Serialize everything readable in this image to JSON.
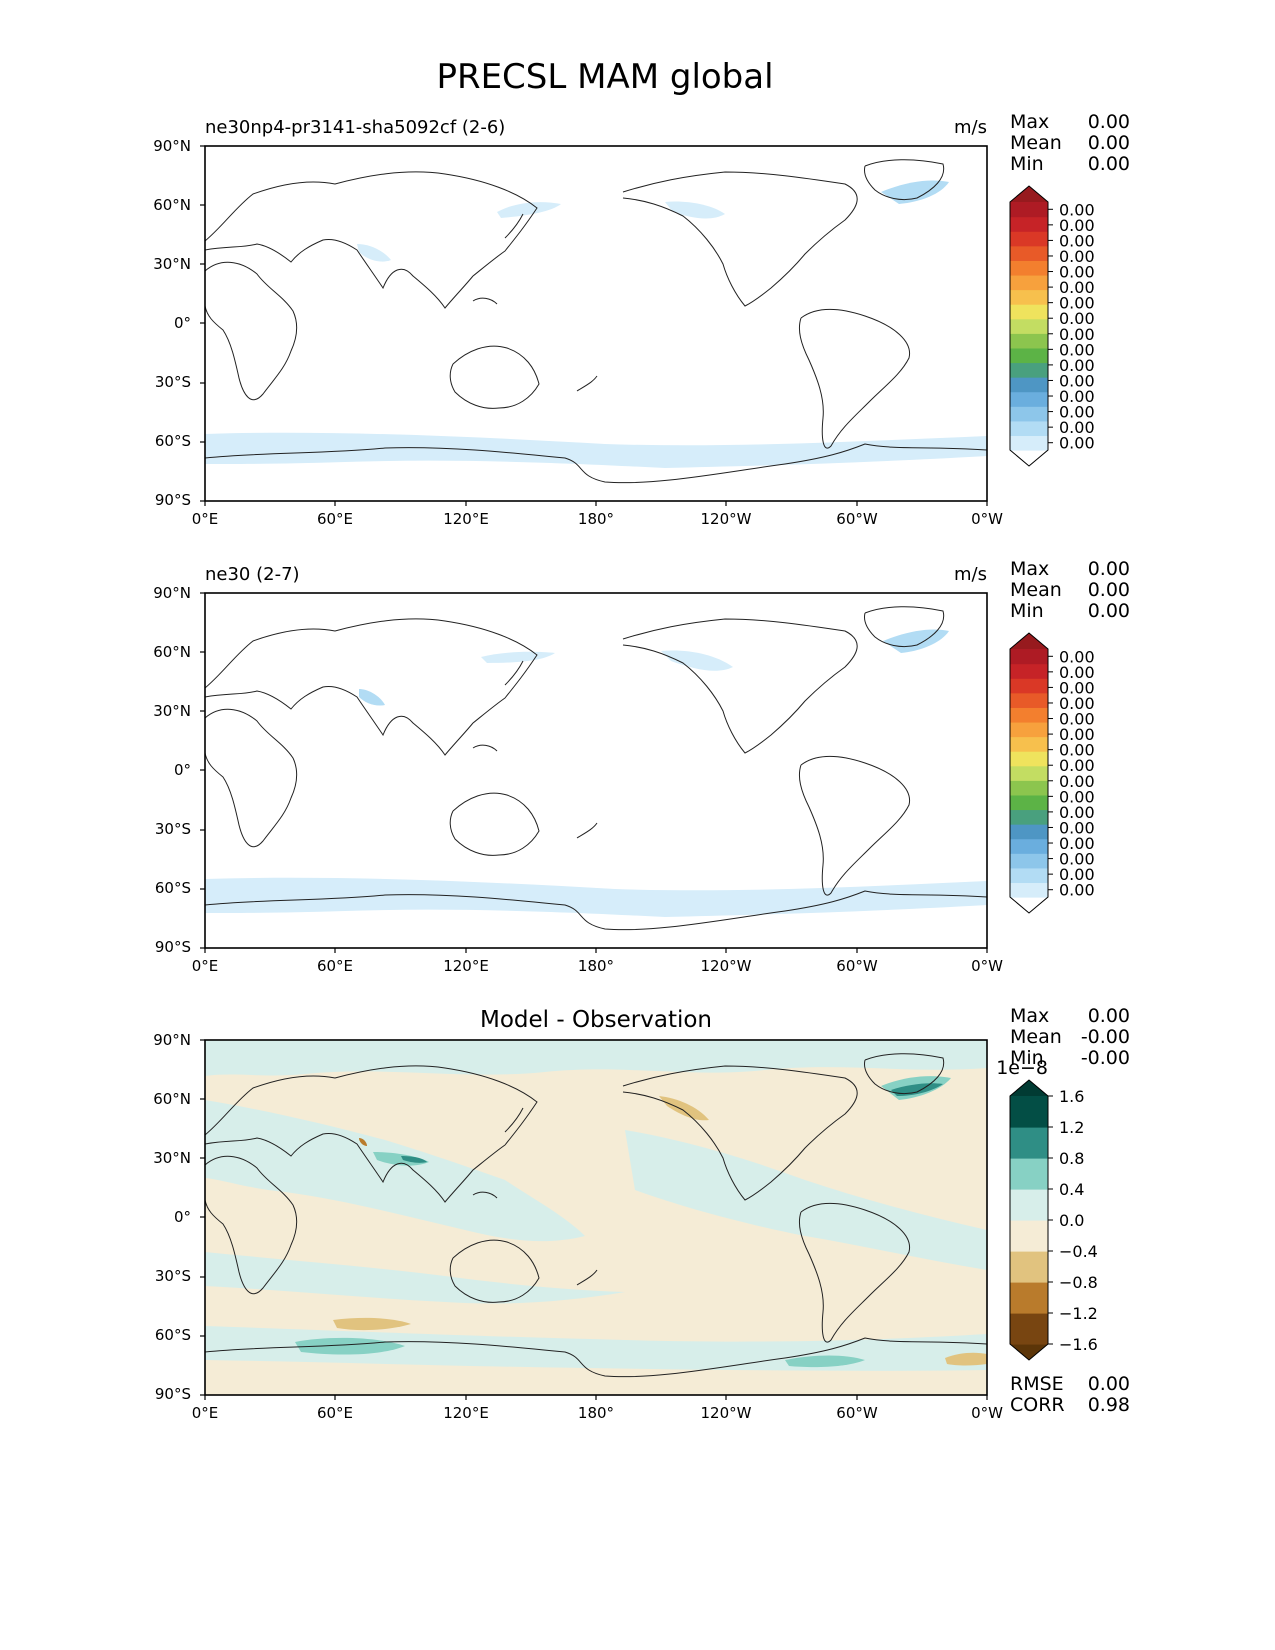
{
  "figure": {
    "title": "PRECSL MAM global"
  },
  "axes_ticks": {
    "lat": [
      "90°N",
      "60°N",
      "30°N",
      "0°",
      "30°S",
      "60°S",
      "90°S"
    ],
    "lon": [
      "0°E",
      "60°E",
      "120°E",
      "180°",
      "120°W",
      "60°W",
      "0°W"
    ]
  },
  "colors": {
    "test_levels": [
      "#ffffff",
      "#d6edfa",
      "#b2dcf4",
      "#8dc6ea",
      "#6aaede",
      "#4e96c4",
      "#49a07e",
      "#5cb346",
      "#8cc54e",
      "#c3dd62",
      "#efe35d",
      "#f7c04d",
      "#f7a13d",
      "#f37f2e",
      "#e85a28",
      "#da3826",
      "#c62327",
      "#ae1b24",
      "#971a1e"
    ],
    "diff_levels": [
      "#5c3508",
      "#784511",
      "#b97b2c",
      "#e1c37f",
      "#f5ecd6",
      "#d7eeea",
      "#87d1c4",
      "#2f8e85",
      "#034e45",
      "#013b33"
    ],
    "coastline": "#222222"
  },
  "panels": [
    {
      "left_label": "ne30np4-pr3141-sha5092cf (2-6)",
      "center_title": "",
      "units": "m/s",
      "stats": [
        {
          "label": "Max",
          "value": "0.00"
        },
        {
          "label": "Mean",
          "value": "0.00"
        },
        {
          "label": "Min",
          "value": "0.00"
        }
      ],
      "colorbar": {
        "kind": "sequential",
        "exponent": "",
        "ticks": [
          "0.00",
          "0.00",
          "0.00",
          "0.00",
          "0.00",
          "0.00",
          "0.00",
          "0.00",
          "0.00",
          "0.00",
          "0.00",
          "0.00",
          "0.00",
          "0.00",
          "0.00",
          "0.00"
        ]
      },
      "footer": []
    },
    {
      "left_label": "ne30 (2-7)",
      "center_title": "",
      "units": "m/s",
      "stats": [
        {
          "label": "Max",
          "value": "0.00"
        },
        {
          "label": "Mean",
          "value": "0.00"
        },
        {
          "label": "Min",
          "value": "0.00"
        }
      ],
      "colorbar": {
        "kind": "sequential",
        "exponent": "",
        "ticks": [
          "0.00",
          "0.00",
          "0.00",
          "0.00",
          "0.00",
          "0.00",
          "0.00",
          "0.00",
          "0.00",
          "0.00",
          "0.00",
          "0.00",
          "0.00",
          "0.00",
          "0.00",
          "0.00"
        ]
      },
      "footer": []
    },
    {
      "left_label": "",
      "center_title": "Model - Observation",
      "units": "",
      "stats": [
        {
          "label": "Max",
          "value": "0.00"
        },
        {
          "label": "Mean",
          "value": "-0.00"
        },
        {
          "label": "Min",
          "value": "-0.00"
        }
      ],
      "colorbar": {
        "kind": "diverging",
        "exponent": "1e−8",
        "ticks": [
          "1.6",
          "1.2",
          "0.8",
          "0.4",
          "0.0",
          "−0.4",
          "−0.8",
          "−1.2",
          "−1.6"
        ]
      },
      "footer": [
        {
          "label": "RMSE",
          "value": "0.00"
        },
        {
          "label": "CORR",
          "value": "0.98"
        }
      ]
    }
  ],
  "chart_data": [
    {
      "type": "heatmap",
      "title": "ne30np4-pr3141-sha5092cf (2-6)",
      "variable": "PRECSL",
      "season": "MAM",
      "units": "m/s",
      "x_range_deg": [
        0,
        360
      ],
      "y_range_deg": [
        -90,
        90
      ],
      "x_tick_labels": [
        "0°E",
        "60°E",
        "120°E",
        "180°",
        "120°W",
        "60°W",
        "0°W"
      ],
      "y_tick_labels": [
        "90°N",
        "60°N",
        "30°N",
        "0°",
        "30°S",
        "60°S",
        "90°S"
      ],
      "max": 0.0,
      "mean": 0.0,
      "min": 0.0,
      "notes": "Light snowfall only near 60°S circumpolar band, Greenland, NW Pacific/Alaska, Tibet"
    },
    {
      "type": "heatmap",
      "title": "ne30 (2-7)",
      "variable": "PRECSL",
      "season": "MAM",
      "units": "m/s",
      "x_range_deg": [
        0,
        360
      ],
      "y_range_deg": [
        -90,
        90
      ],
      "x_tick_labels": [
        "0°E",
        "60°E",
        "120°E",
        "180°",
        "120°W",
        "60°W",
        "0°W"
      ],
      "y_tick_labels": [
        "90°N",
        "60°N",
        "30°N",
        "0°",
        "30°S",
        "60°S",
        "90°S"
      ],
      "max": 0.0,
      "mean": 0.0,
      "min": 0.0
    },
    {
      "type": "heatmap",
      "title": "Model - Observation",
      "variable": "PRECSL difference",
      "scale_exponent": -8,
      "contour_levels": [
        -1.6,
        -1.2,
        -0.8,
        -0.4,
        0.0,
        0.4,
        0.8,
        1.2,
        1.6
      ],
      "x_range_deg": [
        0,
        360
      ],
      "y_range_deg": [
        -90,
        90
      ],
      "max": 0.0,
      "mean": -0.0,
      "min": -0.0,
      "rmse": 0.0,
      "corr": 0.98
    }
  ]
}
